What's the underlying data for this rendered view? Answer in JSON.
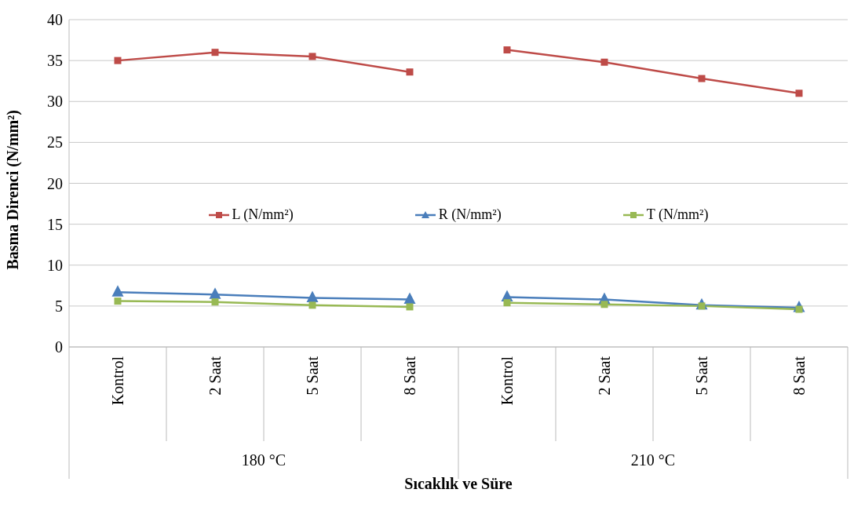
{
  "chart_data": {
    "type": "line",
    "xlabel": "Sıcaklık ve Süre",
    "ylabel": "Basma Direnci (N/mm²)",
    "categories": [
      "Kontrol",
      "2 Saat",
      "5 Saat",
      "8 Saat",
      "Kontrol",
      "2 Saat",
      "5 Saat",
      "8 Saat"
    ],
    "annotations": [
      "180 °C",
      "210 °C"
    ],
    "series": [
      {
        "name": "L (N/mm²)",
        "color": "#be4b48",
        "marker": "square",
        "values": [
          35,
          36,
          35.5,
          33.6,
          null,
          null,
          null,
          null
        ]
      },
      {
        "name": "R (N/mm²)",
        "color": "#4a7ebb",
        "marker": "triangle",
        "values": [
          6.7,
          6.4,
          6.0,
          5.8,
          null,
          null,
          null,
          null
        ]
      },
      {
        "name": "T (N/mm²)",
        "color": "#98b954",
        "marker": "square",
        "values": [
          5.6,
          5.5,
          5.1,
          4.9,
          null,
          null,
          null,
          null
        ]
      },
      {
        "color": "#be4b48",
        "marker": "square",
        "values": [
          null,
          null,
          null,
          null,
          36.3,
          34.8,
          32.8,
          31
        ]
      },
      {
        "color": "#4a7ebb",
        "marker": "triangle",
        "values": [
          null,
          null,
          null,
          null,
          6.1,
          5.8,
          5.1,
          4.8
        ]
      },
      {
        "color": "#98b954",
        "marker": "square",
        "values": [
          null,
          null,
          null,
          null,
          5.4,
          5.2,
          5.0,
          4.6
        ]
      }
    ],
    "ylim": [
      0,
      40
    ],
    "yticks": [
      0,
      5,
      10,
      15,
      20,
      25,
      30,
      35,
      40
    ],
    "grid": "y",
    "legend": "center"
  }
}
